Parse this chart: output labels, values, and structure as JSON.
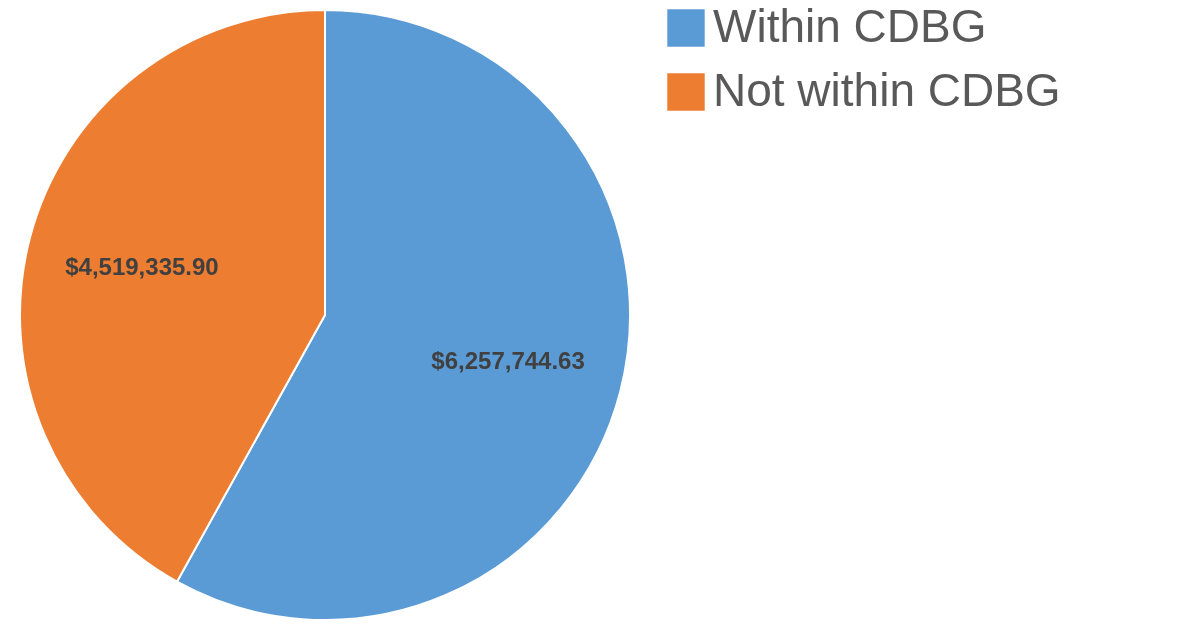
{
  "chart_data": {
    "type": "pie",
    "categories": [
      "Within CDBG",
      "Not within CDBG"
    ],
    "values": [
      6257744.63,
      4519335.9
    ],
    "colors": [
      "#5b9bd5",
      "#ed7d31"
    ],
    "value_labels": [
      "$6,257,744.63",
      "$4,519,335.90"
    ],
    "legend": "top right"
  }
}
